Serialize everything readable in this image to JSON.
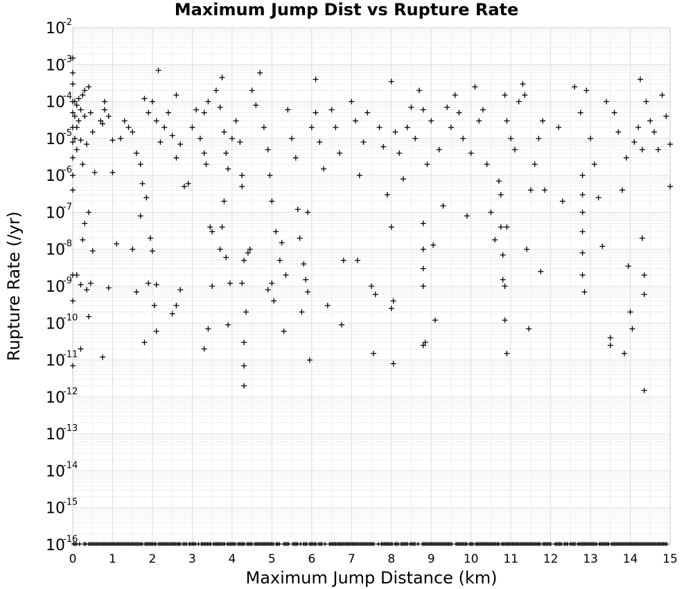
{
  "chart_data": {
    "type": "scatter",
    "title": "Maximum Jump Dist vs Rupture Rate",
    "xlabel": "Maximum Jump Distance (km)",
    "ylabel": "Rupture Rate (/yr)",
    "xlim": [
      0,
      15
    ],
    "ylim": [
      1e-16,
      0.01
    ],
    "yscale": "log",
    "grid": true,
    "legend": "none",
    "marker": "+",
    "x_ticks": [
      "0",
      "1",
      "2",
      "3",
      "4",
      "5",
      "6",
      "7",
      "8",
      "9",
      "10",
      "11",
      "12",
      "13",
      "14",
      "15"
    ],
    "y_ticks": [
      {
        "base": "10",
        "exp": "-2"
      },
      {
        "base": "10",
        "exp": "-3"
      },
      {
        "base": "10",
        "exp": "-4"
      },
      {
        "base": "10",
        "exp": "-5"
      },
      {
        "base": "10",
        "exp": "-6"
      },
      {
        "base": "10",
        "exp": "-7"
      },
      {
        "base": "10",
        "exp": "-8"
      },
      {
        "base": "10",
        "exp": "-9"
      },
      {
        "base": "10",
        "exp": "-10"
      },
      {
        "base": "10",
        "exp": "-11"
      },
      {
        "base": "10",
        "exp": "-12"
      },
      {
        "base": "10",
        "exp": "-13"
      },
      {
        "base": "10",
        "exp": "-14"
      },
      {
        "base": "10",
        "exp": "-15"
      },
      {
        "base": "10",
        "exp": "-16"
      }
    ],
    "points": [
      [
        0.0,
        0.0015
      ],
      [
        0.0,
        0.0006
      ],
      [
        0.0,
        0.0003
      ],
      [
        0.0,
        0.0001
      ],
      [
        0.0,
        5e-05
      ],
      [
        0.0,
        2e-05
      ],
      [
        0.0,
        8e-06
      ],
      [
        0.0,
        3e-06
      ],
      [
        0.0,
        1e-06
      ],
      [
        0.0,
        4e-07
      ],
      [
        0.0,
        2e-09
      ],
      [
        0.0,
        4e-10
      ],
      [
        0.0,
        7e-12
      ],
      [
        0.05,
        0.0001
      ],
      [
        0.05,
        4e-05
      ],
      [
        0.05,
        1e-05
      ],
      [
        0.1,
        8e-05
      ],
      [
        0.1,
        2e-05
      ],
      [
        0.1,
        5e-06
      ],
      [
        0.15,
        0.00012
      ],
      [
        0.15,
        3e-05
      ],
      [
        0.2,
        6e-05
      ],
      [
        0.2,
        9e-06
      ],
      [
        0.25,
        0.00015
      ],
      [
        0.25,
        2e-06
      ],
      [
        0.3,
        0.0002
      ],
      [
        0.3,
        4e-05
      ],
      [
        0.35,
        7e-06
      ],
      [
        0.4,
        0.00025
      ],
      [
        0.4,
        1e-07
      ],
      [
        0.45,
        5e-05
      ],
      [
        0.5,
        1.5e-05
      ],
      [
        0.55,
        1.2e-06
      ],
      [
        0.1,
        2e-09
      ],
      [
        0.2,
        1.1e-09
      ],
      [
        0.25,
        1.8e-08
      ],
      [
        0.3,
        5e-08
      ],
      [
        0.35,
        8e-10
      ],
      [
        0.4,
        1.5e-10
      ],
      [
        0.45,
        1.2e-09
      ],
      [
        0.5,
        9e-09
      ],
      [
        0.2,
        2e-11
      ],
      [
        0.75,
        1.2e-11
      ],
      [
        0.9,
        9e-10
      ],
      [
        1.0,
        1.2e-06
      ],
      [
        1.1,
        1.4e-08
      ],
      [
        1.2,
        1e-05
      ],
      [
        0.7,
        3e-05
      ],
      [
        0.75,
        2.5e-05
      ],
      [
        0.8,
        0.0001
      ],
      [
        0.8,
        6e-05
      ],
      [
        0.9,
        4e-05
      ],
      [
        1.0,
        9e-06
      ],
      [
        1.3,
        3e-05
      ],
      [
        1.4,
        2e-05
      ],
      [
        1.5,
        1.5e-05
      ],
      [
        1.6,
        4e-06
      ],
      [
        1.7,
        2e-06
      ],
      [
        1.8,
        0.00012
      ],
      [
        1.9,
        5e-05
      ],
      [
        1.5,
        1e-08
      ],
      [
        1.6,
        7e-10
      ],
      [
        1.7,
        8e-08
      ],
      [
        1.75,
        6e-07
      ],
      [
        1.8,
        3e-11
      ],
      [
        1.85,
        2.5e-07
      ],
      [
        1.9,
        1.2e-09
      ],
      [
        1.95,
        2e-08
      ],
      [
        2.0,
        9e-09
      ],
      [
        2.05,
        3e-10
      ],
      [
        2.1,
        1.1e-09
      ],
      [
        2.1,
        6e-11
      ],
      [
        2.15,
        0.0007
      ],
      [
        2.0,
        0.0001
      ],
      [
        2.1,
        3e-05
      ],
      [
        2.2,
        8e-06
      ],
      [
        2.3,
        2e-05
      ],
      [
        2.4,
        5e-05
      ],
      [
        2.5,
        1.2e-05
      ],
      [
        2.6,
        3e-06
      ],
      [
        2.6,
        0.00015
      ],
      [
        2.7,
        7e-06
      ],
      [
        2.6,
        3e-10
      ],
      [
        2.5,
        1.8e-10
      ],
      [
        2.7,
        8e-10
      ],
      [
        2.8,
        5e-07
      ],
      [
        2.9,
        6e-07
      ],
      [
        3.0,
        2e-05
      ],
      [
        3.1,
        6e-05
      ],
      [
        3.2,
        1e-05
      ],
      [
        3.3,
        4e-06
      ],
      [
        3.35,
        2e-06
      ],
      [
        3.3,
        5e-05
      ],
      [
        3.4,
        0.0001
      ],
      [
        3.45,
        4e-08
      ],
      [
        3.5,
        3e-08
      ],
      [
        3.3,
        2e-11
      ],
      [
        3.4,
        7e-11
      ],
      [
        3.5,
        1e-09
      ],
      [
        3.6,
        0.0002
      ],
      [
        3.7,
        7e-05
      ],
      [
        3.75,
        0.00045
      ],
      [
        3.8,
        1.5e-05
      ],
      [
        3.85,
        4e-06
      ],
      [
        3.9,
        1.5e-06
      ],
      [
        3.7,
        1e-08
      ],
      [
        3.75,
        4e-08
      ],
      [
        3.8,
        2e-07
      ],
      [
        3.85,
        6e-09
      ],
      [
        3.9,
        9e-11
      ],
      [
        3.95,
        1.2e-09
      ],
      [
        4.0,
        1e-05
      ],
      [
        4.1,
        3e-05
      ],
      [
        4.2,
        8e-06
      ],
      [
        4.25,
        1e-06
      ],
      [
        4.25,
        5e-07
      ],
      [
        4.3,
        3e-11
      ],
      [
        4.3,
        7e-12
      ],
      [
        4.3,
        2e-12
      ],
      [
        4.25,
        1.2e-09
      ],
      [
        4.3,
        5e-09
      ],
      [
        4.35,
        2e-10
      ],
      [
        4.4,
        8e-09
      ],
      [
        4.45,
        1e-08
      ],
      [
        4.5,
        0.0002
      ],
      [
        4.6,
        8e-05
      ],
      [
        4.7,
        0.0006
      ],
      [
        4.8,
        2e-05
      ],
      [
        4.9,
        5e-06
      ],
      [
        4.95,
        1e-06
      ],
      [
        5.0,
        2e-07
      ],
      [
        4.9,
        8e-10
      ],
      [
        5.0,
        1.2e-09
      ],
      [
        5.05,
        4e-10
      ],
      [
        5.1,
        3e-08
      ],
      [
        5.2,
        5e-09
      ],
      [
        5.25,
        1.5e-08
      ],
      [
        5.3,
        6e-11
      ],
      [
        5.35,
        2e-09
      ],
      [
        5.4,
        6e-05
      ],
      [
        5.5,
        1e-05
      ],
      [
        5.6,
        3e-06
      ],
      [
        5.65,
        1.2e-07
      ],
      [
        5.7,
        2e-08
      ],
      [
        5.75,
        2e-10
      ],
      [
        5.8,
        4e-09
      ],
      [
        5.85,
        1.5e-09
      ],
      [
        5.9,
        7e-10
      ],
      [
        5.95,
        1e-11
      ],
      [
        5.9,
        1e-07
      ],
      [
        6.0,
        2e-05
      ],
      [
        6.1,
        5e-05
      ],
      [
        6.1,
        0.0004
      ],
      [
        6.2,
        8e-06
      ],
      [
        6.3,
        1.5e-06
      ],
      [
        6.4,
        3e-10
      ],
      [
        6.5,
        6e-05
      ],
      [
        6.6,
        2e-05
      ],
      [
        6.7,
        4e-06
      ],
      [
        6.75,
        9e-11
      ],
      [
        6.8,
        5e-09
      ],
      [
        7.0,
        0.0001
      ],
      [
        7.1,
        3e-05
      ],
      [
        7.15,
        5e-09
      ],
      [
        7.2,
        1e-06
      ],
      [
        7.3,
        8e-06
      ],
      [
        7.4,
        5e-05
      ],
      [
        7.5,
        1e-09
      ],
      [
        7.55,
        1.5e-11
      ],
      [
        7.6,
        6e-10
      ],
      [
        7.7,
        2e-05
      ],
      [
        7.8,
        6e-06
      ],
      [
        7.9,
        3e-07
      ],
      [
        8.0,
        0.00035
      ],
      [
        8.0,
        4e-08
      ],
      [
        8.0,
        2.5e-10
      ],
      [
        8.05,
        4e-10
      ],
      [
        8.05,
        8e-12
      ],
      [
        8.1,
        1.5e-05
      ],
      [
        8.2,
        4e-06
      ],
      [
        8.3,
        8e-07
      ],
      [
        8.4,
        2e-05
      ],
      [
        8.5,
        7e-05
      ],
      [
        8.6,
        1e-05
      ],
      [
        8.7,
        0.0002
      ],
      [
        8.8,
        6e-05
      ],
      [
        8.8,
        5e-08
      ],
      [
        8.8,
        1e-08
      ],
      [
        8.8,
        3e-09
      ],
      [
        8.8,
        1e-09
      ],
      [
        8.8,
        2.5e-11
      ],
      [
        8.85,
        3e-11
      ],
      [
        8.9,
        2e-06
      ],
      [
        9.0,
        3e-05
      ],
      [
        9.05,
        1.3e-08
      ],
      [
        9.1,
        1.2e-10
      ],
      [
        9.2,
        5e-06
      ],
      [
        9.3,
        1.5e-07
      ],
      [
        9.4,
        7e-05
      ],
      [
        9.5,
        2e-05
      ],
      [
        9.6,
        0.00015
      ],
      [
        9.7,
        5e-05
      ],
      [
        9.8,
        1e-05
      ],
      [
        9.9,
        8e-08
      ],
      [
        10.0,
        4e-06
      ],
      [
        10.1,
        0.00025
      ],
      [
        10.2,
        3e-05
      ],
      [
        10.3,
        6e-05
      ],
      [
        10.4,
        2e-06
      ],
      [
        10.5,
        1e-07
      ],
      [
        10.6,
        1.8e-08
      ],
      [
        10.7,
        7e-07
      ],
      [
        10.75,
        3e-07
      ],
      [
        10.75,
        4e-08
      ],
      [
        10.8,
        7e-09
      ],
      [
        10.8,
        1.5e-09
      ],
      [
        10.85,
        1e-09
      ],
      [
        10.85,
        1.2e-10
      ],
      [
        10.9,
        1.5e-11
      ],
      [
        10.9,
        4e-08
      ],
      [
        10.85,
        0.00015
      ],
      [
        10.9,
        3e-05
      ],
      [
        11.0,
        1e-05
      ],
      [
        11.1,
        5e-06
      ],
      [
        11.2,
        0.0001
      ],
      [
        11.3,
        0.0003
      ],
      [
        11.35,
        0.00015
      ],
      [
        11.4,
        1e-08
      ],
      [
        11.45,
        7e-11
      ],
      [
        11.5,
        4e-07
      ],
      [
        11.6,
        2e-06
      ],
      [
        11.7,
        1e-05
      ],
      [
        11.75,
        2.5e-09
      ],
      [
        11.8,
        3e-05
      ],
      [
        11.85,
        4e-07
      ],
      [
        12.2,
        2e-05
      ],
      [
        12.3,
        2e-07
      ],
      [
        12.6,
        0.00025
      ],
      [
        12.75,
        5e-05
      ],
      [
        12.8,
        1e-06
      ],
      [
        12.8,
        3e-07
      ],
      [
        12.8,
        1e-07
      ],
      [
        12.8,
        3e-08
      ],
      [
        12.8,
        8e-09
      ],
      [
        12.8,
        2e-09
      ],
      [
        12.85,
        7e-10
      ],
      [
        12.9,
        0.0002
      ],
      [
        13.0,
        1e-05
      ],
      [
        13.1,
        2e-06
      ],
      [
        13.2,
        2.5e-07
      ],
      [
        13.3,
        1.2e-08
      ],
      [
        13.4,
        0.0001
      ],
      [
        13.5,
        4e-11
      ],
      [
        13.5,
        2.5e-11
      ],
      [
        13.6,
        5e-05
      ],
      [
        13.7,
        1.5e-05
      ],
      [
        13.8,
        4e-07
      ],
      [
        13.85,
        1.5e-11
      ],
      [
        13.9,
        3e-06
      ],
      [
        13.95,
        3.5e-09
      ],
      [
        14.0,
        2e-10
      ],
      [
        14.05,
        7e-11
      ],
      [
        14.1,
        8e-06
      ],
      [
        14.2,
        2e-05
      ],
      [
        14.25,
        0.0004
      ],
      [
        14.3,
        2e-08
      ],
      [
        14.3,
        5e-06
      ],
      [
        14.35,
        2e-09
      ],
      [
        14.35,
        6e-10
      ],
      [
        14.35,
        1.5e-12
      ],
      [
        14.4,
        0.0001
      ],
      [
        14.5,
        3e-05
      ],
      [
        14.6,
        1.5e-05
      ],
      [
        14.7,
        5e-06
      ],
      [
        14.8,
        0.00015
      ],
      [
        14.9,
        4e-05
      ],
      [
        15.0,
        7e-06
      ],
      [
        15.0,
        5e-07
      ]
    ],
    "floor_points_x_note": "dense row of points at the 1e-16 floor across full x range",
    "floor_value": 1e-16
  }
}
